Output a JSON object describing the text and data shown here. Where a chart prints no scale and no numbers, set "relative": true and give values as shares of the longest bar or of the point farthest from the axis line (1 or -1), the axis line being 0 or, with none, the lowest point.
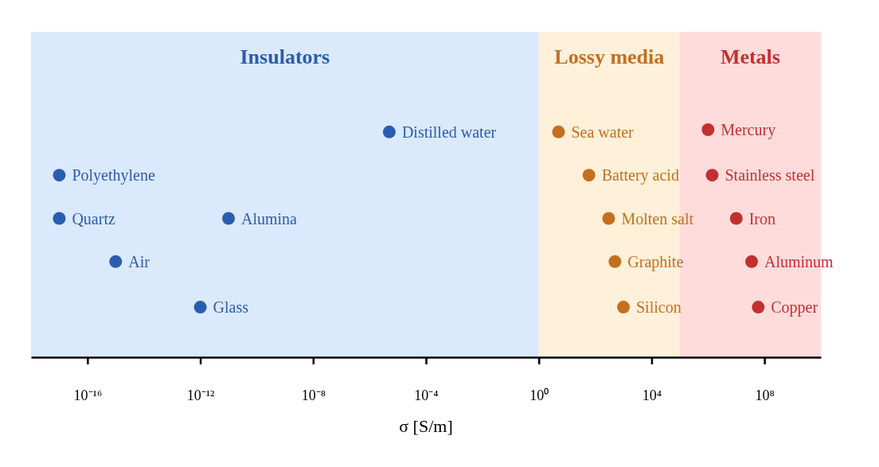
{
  "chart_data": {
    "type": "scatter",
    "relative": true,
    "log": "x",
    "xlabel": "σ [S/m]",
    "xlim": [
      1e-18,
      10000000000.0
    ],
    "xticks": [
      {
        "value": 1e-16,
        "label": "10⁻¹⁶"
      },
      {
        "value": 1e-12,
        "label": "10⁻¹²"
      },
      {
        "value": 1e-08,
        "label": "10⁻⁸"
      },
      {
        "value": 0.0001,
        "label": "10⁻⁴"
      },
      {
        "value": 1,
        "label": "10⁰"
      },
      {
        "value": 10000.0,
        "label": "10⁴"
      },
      {
        "value": 100000000.0,
        "label": "10⁸"
      }
    ],
    "marker": "circle",
    "series": [
      {
        "color": "#2a5db0",
        "x": [
          1e-17,
          1e-17,
          1e-15,
          1e-11,
          1e-12,
          5e-06
        ],
        "values": [
          0.8,
          0.61,
          0.42,
          0.61,
          0.22,
          0.99
        ]
      },
      {
        "color": "#c46f1e",
        "x": [
          5,
          60,
          300,
          500,
          1000
        ],
        "values": [
          0.99,
          0.8,
          0.61,
          0.42,
          0.22
        ]
      },
      {
        "color": "#c43030",
        "x": [
          1000000.0,
          1400000.0,
          10000000.0,
          35000000.0,
          60000000.0
        ],
        "values": [
          1,
          0.8,
          0.61,
          0.42,
          0.22
        ]
      }
    ],
    "bands": [
      {
        "axis": "x",
        "from": 1e-18,
        "to": 1,
        "label": "Insulators",
        "color": "#dbe9fd"
      },
      {
        "axis": "x",
        "from": 1,
        "to": 100000.0,
        "label": "Lossy media",
        "color": "#fff0d9"
      },
      {
        "axis": "x",
        "from": 100000.0,
        "to": 10000000000.0,
        "label": "Metals",
        "color": "#ffdcdc"
      }
    ],
    "annotations": [
      {
        "text": "Polyethylene",
        "x": 1e-17,
        "y": 0.8
      },
      {
        "text": "Quartz",
        "x": 1e-17,
        "y": 0.61
      },
      {
        "text": "Air",
        "x": 1e-15,
        "y": 0.42
      },
      {
        "text": "Alumina",
        "x": 1e-11,
        "y": 0.61
      },
      {
        "text": "Glass",
        "x": 1e-12,
        "y": 0.22
      },
      {
        "text": "Distilled water",
        "x": 5e-06,
        "y": 0.99
      },
      {
        "text": "Sea water",
        "x": 5,
        "y": 0.99
      },
      {
        "text": "Battery acid",
        "x": 60,
        "y": 0.8
      },
      {
        "text": "Molten salt",
        "x": 300,
        "y": 0.61
      },
      {
        "text": "Graphite",
        "x": 500,
        "y": 0.42
      },
      {
        "text": "Silicon",
        "x": 1000,
        "y": 0.22
      },
      {
        "text": "Mercury",
        "x": 1000000.0,
        "y": 1
      },
      {
        "text": "Stainless steel",
        "x": 1400000.0,
        "y": 0.8
      },
      {
        "text": "Iron",
        "x": 10000000.0,
        "y": 0.61
      },
      {
        "text": "Aluminum",
        "x": 35000000.0,
        "y": 0.42
      },
      {
        "text": "Copper",
        "x": 60000000.0,
        "y": 0.22
      }
    ]
  }
}
